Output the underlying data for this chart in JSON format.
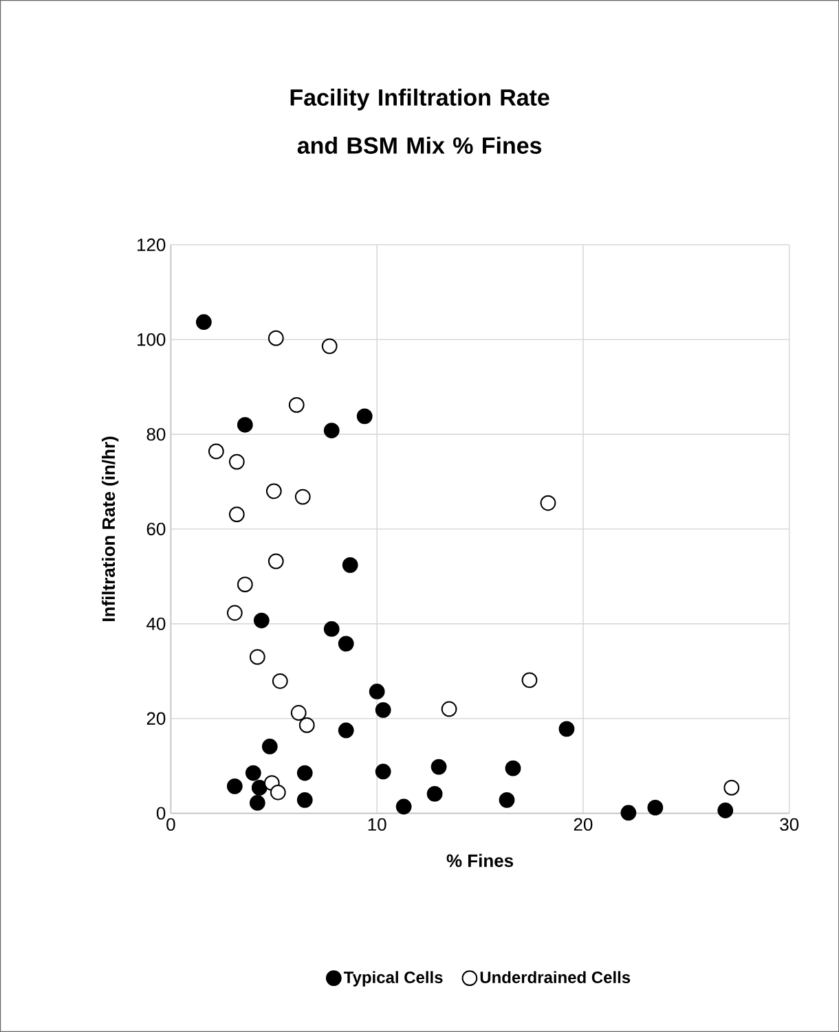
{
  "chart_data": {
    "type": "scatter",
    "title": "Facility Infiltration Rate and BSM Mix % Fines",
    "xlabel": "% Fines",
    "ylabel": "Infiltration Rate (in/hr)",
    "xlim": [
      0,
      30
    ],
    "xticks": [
      0,
      10,
      20,
      30
    ],
    "ylim": [
      0,
      120
    ],
    "yticks": [
      0,
      20,
      40,
      60,
      80,
      100,
      120
    ],
    "grid": true,
    "legend": "bottom",
    "marker": "circle",
    "series": [
      {
        "name": "Typical Cells",
        "color": "#000000",
        "x": [
          1.6,
          3.6,
          7.8,
          9.4,
          8.7,
          4.4,
          7.8,
          8.5,
          10.0,
          10.3,
          8.5,
          4.8,
          4.0,
          3.1,
          4.3,
          4.2,
          6.5,
          6.5,
          10.3,
          11.3,
          13.0,
          12.8,
          19.2,
          16.6,
          16.3,
          22.2,
          23.5,
          26.9
        ],
        "values": [
          103.7,
          82,
          80.8,
          83.8,
          52.4,
          40.7,
          38.9,
          35.8,
          25.7,
          21.8,
          17.5,
          14.1,
          8.5,
          5.7,
          5.4,
          2.2,
          8.5,
          2.8,
          8.8,
          1.4,
          9.8,
          4.1,
          17.8,
          9.5,
          2.8,
          0.1,
          1.2,
          0.6
        ]
      },
      {
        "name": "Underdrained Cells",
        "color": "#ffffff",
        "x": [
          5.1,
          7.7,
          6.1,
          2.2,
          3.2,
          5.0,
          6.4,
          3.2,
          5.1,
          3.6,
          3.1,
          4.2,
          5.3,
          6.2,
          6.6,
          13.5,
          4.9,
          5.2,
          18.3,
          17.4,
          27.2
        ],
        "values": [
          100.3,
          98.6,
          86.2,
          76.4,
          74.2,
          68,
          66.8,
          63.1,
          53.2,
          48.3,
          42.3,
          33,
          27.9,
          21.2,
          18.6,
          22,
          6.4,
          4.4,
          65.5,
          28.1,
          5.4
        ]
      }
    ]
  }
}
